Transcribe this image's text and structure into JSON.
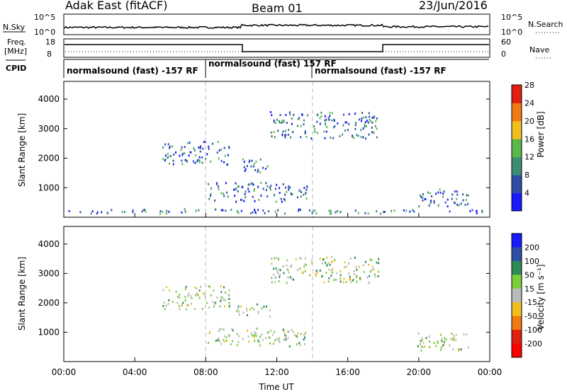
{
  "header": {
    "station": "Adak East (fitACF)",
    "beam": "Beam 01",
    "date": "23/Jun/2016"
  },
  "noise_panel": {
    "left_label": "N.Sky",
    "right_label": "N.Search",
    "left_ticks": [
      "10^5",
      "10^0"
    ],
    "right_ticks": [
      "10^5",
      "10^0"
    ]
  },
  "freq_panel": {
    "left_label_1": "Freq.",
    "left_label_2": "[MHz]",
    "right_label": "Nave",
    "left_ticks": [
      "18",
      "8"
    ],
    "right_ticks": [
      "60",
      "0"
    ]
  },
  "cpid": {
    "label": "CPID",
    "segments": [
      {
        "start": "00:00",
        "end": "08:00",
        "text": "normalsound (fast) -157 RF"
      },
      {
        "start": "08:00",
        "end": "14:00",
        "text": "normalsound (fast) 157 RF"
      },
      {
        "start": "14:00",
        "end": "24:00",
        "text": "normalsound (fast) -157 RF"
      }
    ]
  },
  "chart_data": [
    {
      "type": "heatmap",
      "title": "",
      "xlabel": "",
      "ylabel": "Slant Range [km]",
      "xlim": [
        0,
        24
      ],
      "ylim": [
        0,
        4600
      ],
      "yticks": [
        1000,
        2000,
        3000,
        4000
      ],
      "colorbar_label": "Power [dB]",
      "colorbar_ticks": [
        4,
        8,
        12,
        16,
        20,
        24,
        28
      ],
      "colorbar_colors": [
        "#1a1aff",
        "#2e4fa8",
        "#3d8c73",
        "#59b84a",
        "#f0c020",
        "#f07a10",
        "#e02010"
      ],
      "regions": [
        {
          "t": [
            8.1,
            13.7
          ],
          "r": [
            550,
            1200
          ],
          "level": "4-16 dB"
        },
        {
          "t": [
            5.5,
            9.3
          ],
          "r": [
            1800,
            2600
          ],
          "level": "4-8 dB"
        },
        {
          "t": [
            9.7,
            11.6
          ],
          "r": [
            1550,
            2000
          ],
          "level": "4-8 dB"
        },
        {
          "t": [
            19.8,
            22.8
          ],
          "r": [
            400,
            1000
          ],
          "level": "4-16 dB"
        },
        {
          "t": [
            11.6,
            17.7
          ],
          "r": [
            2700,
            3600
          ],
          "level": "4-12 dB"
        },
        {
          "t": [
            0,
            23.8
          ],
          "r": [
            150,
            300
          ],
          "level": "4-20 dB"
        }
      ]
    },
    {
      "type": "heatmap",
      "title": "",
      "xlabel": "Time UT",
      "ylabel": "Slant Range [km]",
      "xlim": [
        0,
        24
      ],
      "ylim": [
        0,
        4600
      ],
      "yticks": [
        1000,
        2000,
        3000,
        4000
      ],
      "xticks": [
        "00:00",
        "04:00",
        "08:00",
        "12:00",
        "16:00",
        "20:00",
        "00:00"
      ],
      "colorbar_label": "Velocity [m s⁻¹]",
      "colorbar_ticks": [
        "200",
        "100",
        "50",
        "15",
        "-15",
        "-50",
        "-100",
        "-200"
      ],
      "colorbar_colors": [
        "#1a1aff",
        "#2e4fa8",
        "#2e8b57",
        "#7ccd3c",
        "#bbbbbb",
        "#f0c020",
        "#f07a10",
        "#e02010",
        "#ff0000"
      ],
      "regions": [
        {
          "t": [
            8.1,
            13.7
          ],
          "r": [
            550,
            1200
          ],
          "level": "-15 to 50 m/s"
        },
        {
          "t": [
            5.5,
            9.3
          ],
          "r": [
            1800,
            2600
          ],
          "level": "-15 to 15 m/s"
        },
        {
          "t": [
            9.7,
            11.6
          ],
          "r": [
            1550,
            2000
          ],
          "level": "-15 to 15 m/s"
        },
        {
          "t": [
            19.8,
            22.8
          ],
          "r": [
            400,
            1000
          ],
          "level": "-15 to 15 m/s"
        },
        {
          "t": [
            11.6,
            17.7
          ],
          "r": [
            2700,
            3600
          ],
          "level": "mixed"
        }
      ]
    }
  ]
}
